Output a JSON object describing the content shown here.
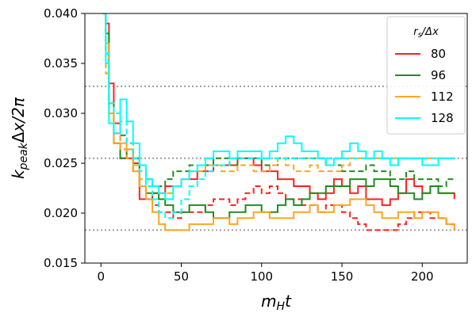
{
  "chart_data": {
    "type": "line",
    "title": "",
    "xlabel": "m_H t",
    "ylabel": "k_peak Δx / 2π",
    "xlim": [
      -10,
      228
    ],
    "ylim": [
      0.015,
      0.04
    ],
    "xticks": [
      0,
      50,
      100,
      150,
      200
    ],
    "yticks": [
      0.015,
      0.02,
      0.025,
      0.03,
      0.035,
      0.04
    ],
    "xtick_labels": [
      "0",
      "50",
      "100",
      "150",
      "200"
    ],
    "ytick_labels": [
      "0.015",
      "0.020",
      "0.025",
      "0.030",
      "0.035",
      "0.040"
    ],
    "hlines": [
      0.0183,
      0.0255,
      0.0327
    ],
    "hline_color": "#a0a0a0",
    "legend": {
      "title": "r_s/Δx",
      "position": "top-right"
    },
    "series": [
      {
        "name": "80",
        "color": "#ff2020",
        "style": "solid",
        "x": [
          1,
          3,
          5,
          8,
          12,
          16,
          20,
          24,
          28,
          32,
          36,
          40,
          45,
          50,
          55,
          60,
          65,
          70,
          75,
          80,
          85,
          90,
          95,
          100,
          105,
          110,
          115,
          120,
          125,
          130,
          135,
          140,
          145,
          150,
          155,
          160,
          165,
          170,
          175,
          180,
          185,
          190,
          195,
          200,
          205,
          210,
          215,
          220
        ],
        "y": [
          0.04,
          0.039,
          0.033,
          0.027,
          0.0255,
          0.0255,
          0.025,
          0.0214,
          0.0214,
          0.022,
          0.022,
          0.0227,
          0.0227,
          0.0234,
          0.0234,
          0.0242,
          0.0242,
          0.0248,
          0.0248,
          0.0248,
          0.0255,
          0.0255,
          0.0248,
          0.0242,
          0.0242,
          0.0234,
          0.0234,
          0.0227,
          0.0227,
          0.022,
          0.0214,
          0.022,
          0.0234,
          0.0227,
          0.022,
          0.0227,
          0.0214,
          0.0214,
          0.0208,
          0.0214,
          0.022,
          0.0234,
          0.0227,
          0.022,
          0.0227,
          0.022,
          0.022,
          0.0214
        ]
      },
      {
        "name": "80 (dashed)",
        "color": "#ff2020",
        "style": "dashed",
        "x": [
          1,
          3,
          5,
          8,
          12,
          16,
          20,
          24,
          28,
          32,
          36,
          40,
          45,
          50,
          55,
          60,
          65,
          70,
          75,
          80,
          85,
          90,
          95,
          100,
          105,
          110,
          115,
          120,
          125,
          130,
          135,
          140,
          145,
          150,
          155,
          160,
          165,
          170,
          175,
          180,
          185,
          190,
          195,
          200,
          205,
          210,
          215,
          220
        ],
        "y": [
          0.04,
          0.037,
          0.031,
          0.029,
          0.0264,
          0.0255,
          0.0242,
          0.0227,
          0.0214,
          0.0208,
          0.0201,
          0.0201,
          0.0195,
          0.0201,
          0.0201,
          0.0201,
          0.0208,
          0.0214,
          0.0214,
          0.0208,
          0.0214,
          0.022,
          0.0227,
          0.022,
          0.0227,
          0.022,
          0.0214,
          0.0214,
          0.0208,
          0.0208,
          0.0201,
          0.0208,
          0.0208,
          0.0201,
          0.0195,
          0.0189,
          0.0183,
          0.0183,
          0.0183,
          0.0183,
          0.0189,
          0.0195,
          0.0201,
          0.0201,
          0.0195,
          0.0195,
          0.0189,
          0.0183
        ]
      },
      {
        "name": "96",
        "color": "#228b22",
        "style": "solid",
        "x": [
          1,
          3,
          5,
          8,
          12,
          16,
          20,
          24,
          28,
          32,
          36,
          40,
          45,
          50,
          55,
          60,
          65,
          70,
          75,
          80,
          85,
          90,
          95,
          100,
          105,
          110,
          115,
          120,
          125,
          130,
          135,
          140,
          145,
          150,
          155,
          160,
          165,
          170,
          175,
          180,
          185,
          190,
          195,
          200,
          205,
          210,
          215,
          220
        ],
        "y": [
          0.04,
          0.038,
          0.031,
          0.027,
          0.0255,
          0.0264,
          0.0255,
          0.0227,
          0.022,
          0.022,
          0.0214,
          0.0208,
          0.0201,
          0.0201,
          0.0208,
          0.0208,
          0.0201,
          0.0195,
          0.0195,
          0.0201,
          0.0201,
          0.0208,
          0.0208,
          0.0201,
          0.0201,
          0.0208,
          0.0214,
          0.0208,
          0.0214,
          0.022,
          0.022,
          0.0227,
          0.0227,
          0.0227,
          0.0234,
          0.0234,
          0.0227,
          0.0234,
          0.0234,
          0.0227,
          0.022,
          0.022,
          0.0214,
          0.022,
          0.0227,
          0.022,
          0.022,
          0.022
        ]
      },
      {
        "name": "96 (dashed)",
        "color": "#228b22",
        "style": "dashed",
        "x": [
          1,
          3,
          5,
          8,
          12,
          16,
          20,
          24,
          28,
          32,
          36,
          40,
          45,
          50,
          55,
          60,
          65,
          70,
          75,
          80,
          85,
          90,
          95,
          100,
          105,
          110,
          115,
          120,
          125,
          130,
          135,
          140,
          145,
          150,
          155,
          160,
          165,
          170,
          175,
          180,
          185,
          190,
          195,
          200,
          205,
          210,
          215,
          220
        ],
        "y": [
          0.04,
          0.036,
          0.03,
          0.028,
          0.0278,
          0.027,
          0.0255,
          0.0242,
          0.0234,
          0.0227,
          0.0227,
          0.0234,
          0.0242,
          0.0242,
          0.0248,
          0.0248,
          0.0248,
          0.0255,
          0.0255,
          0.0248,
          0.0255,
          0.0255,
          0.0255,
          0.0248,
          0.0248,
          0.0255,
          0.0255,
          0.0255,
          0.0255,
          0.0255,
          0.0255,
          0.0248,
          0.0248,
          0.0242,
          0.0242,
          0.0242,
          0.0248,
          0.0242,
          0.0242,
          0.0234,
          0.0234,
          0.0242,
          0.0234,
          0.0234,
          0.0234,
          0.0227,
          0.0234,
          0.0234
        ]
      },
      {
        "name": "112",
        "color": "#ffa520",
        "style": "solid",
        "x": [
          1,
          3,
          5,
          8,
          12,
          16,
          20,
          24,
          28,
          32,
          36,
          40,
          45,
          50,
          55,
          60,
          65,
          70,
          75,
          80,
          85,
          90,
          95,
          100,
          105,
          110,
          115,
          120,
          125,
          130,
          135,
          140,
          145,
          150,
          155,
          160,
          165,
          170,
          175,
          180,
          185,
          190,
          195,
          200,
          205,
          210,
          215,
          220
        ],
        "y": [
          0.04,
          0.037,
          0.03,
          0.027,
          0.027,
          0.0264,
          0.0242,
          0.0227,
          0.0214,
          0.0201,
          0.0189,
          0.0183,
          0.0183,
          0.0183,
          0.0189,
          0.0189,
          0.0189,
          0.0195,
          0.0195,
          0.0189,
          0.0195,
          0.0195,
          0.0201,
          0.0201,
          0.0195,
          0.0195,
          0.0195,
          0.0201,
          0.0201,
          0.0208,
          0.0201,
          0.0201,
          0.0208,
          0.0208,
          0.0214,
          0.0214,
          0.0208,
          0.0201,
          0.0195,
          0.0195,
          0.0201,
          0.0201,
          0.0195,
          0.0201,
          0.0201,
          0.0195,
          0.0189,
          0.0183
        ]
      },
      {
        "name": "112 (dashed)",
        "color": "#ffa520",
        "style": "dashed",
        "x": [
          1,
          3,
          5,
          8,
          12,
          16,
          20,
          24,
          28,
          32,
          36,
          40,
          45,
          50,
          55,
          60,
          65,
          70,
          75,
          80,
          85,
          90,
          95,
          100,
          105,
          110,
          115,
          120,
          125,
          130,
          135,
          140,
          145,
          150,
          155,
          160,
          165,
          170,
          175,
          180,
          185,
          190,
          195,
          200,
          205,
          210,
          215,
          220
        ],
        "y": [
          0.04,
          0.034,
          0.029,
          0.028,
          0.0264,
          0.0255,
          0.0248,
          0.0234,
          0.0227,
          0.0227,
          0.022,
          0.022,
          0.0227,
          0.0234,
          0.0242,
          0.0242,
          0.0248,
          0.0248,
          0.0242,
          0.0242,
          0.0248,
          0.0248,
          0.0242,
          0.0242,
          0.0248,
          0.0255,
          0.0248,
          0.0242,
          0.0242,
          0.0248,
          0.0242,
          0.0242,
          0.0242,
          0.0248,
          0.0255,
          0.0255,
          0.0255,
          0.0255,
          0.0255,
          0.0255,
          0.0255,
          0.0255,
          0.0255,
          0.0255,
          0.0255,
          0.0255,
          0.0255,
          0.0255
        ]
      },
      {
        "name": "128",
        "color": "#00ffff",
        "style": "solid",
        "x": [
          1,
          3,
          5,
          8,
          12,
          16,
          20,
          24,
          28,
          32,
          36,
          40,
          45,
          50,
          55,
          60,
          65,
          70,
          75,
          80,
          85,
          90,
          95,
          100,
          105,
          110,
          115,
          120,
          125,
          130,
          135,
          140,
          145,
          150,
          155,
          160,
          165,
          170,
          175,
          180,
          185,
          190,
          195,
          200,
          205,
          210,
          215,
          220
        ],
        "y": [
          0.04,
          0.035,
          0.029,
          0.028,
          0.0314,
          0.0292,
          0.027,
          0.0248,
          0.0234,
          0.0227,
          0.022,
          0.0214,
          0.0227,
          0.0234,
          0.0242,
          0.0248,
          0.0255,
          0.0262,
          0.0262,
          0.0255,
          0.0262,
          0.0262,
          0.0262,
          0.0255,
          0.0262,
          0.027,
          0.0277,
          0.027,
          0.0262,
          0.0262,
          0.0255,
          0.0248,
          0.0255,
          0.0262,
          0.027,
          0.0262,
          0.0255,
          0.0262,
          0.0255,
          0.0248,
          0.0255,
          0.0255,
          0.0255,
          0.0248,
          0.0248,
          0.0255,
          0.0255,
          0.0255
        ]
      },
      {
        "name": "128 (dashed)",
        "color": "#00ffff",
        "style": "dashed",
        "x": [
          1,
          3,
          5,
          8,
          12,
          16,
          20,
          24,
          28,
          32,
          36,
          40,
          45,
          50,
          55,
          60,
          65,
          70,
          75,
          80,
          85,
          90,
          95,
          100,
          105,
          110,
          115,
          120,
          125,
          130,
          135,
          140,
          145,
          150,
          155,
          160,
          165,
          170,
          175,
          180,
          185,
          190,
          195,
          200,
          205,
          210,
          215,
          220
        ],
        "y": [
          0.04,
          0.036,
          0.031,
          0.03,
          0.0292,
          0.027,
          0.0255,
          0.0242,
          0.0227,
          0.0214,
          0.0201,
          0.0195,
          0.0201,
          0.0214,
          0.0227,
          0.0234,
          0.0242,
          0.0248,
          0.0248,
          0.0255,
          0.0255,
          0.0255,
          0.0255,
          0.0255,
          0.0255,
          0.0255,
          0.0255,
          0.0255,
          0.0255,
          0.0255,
          0.0255,
          0.0255,
          0.0255,
          0.0255,
          0.0255,
          0.0255,
          0.0255,
          0.0255,
          0.0255,
          0.0255,
          0.0255,
          0.0255,
          0.0255,
          0.0255,
          0.0255,
          0.0255,
          0.0255,
          0.0255
        ]
      }
    ],
    "legend_entries": [
      {
        "label": "80",
        "color": "#ff2020"
      },
      {
        "label": "96",
        "color": "#228b22"
      },
      {
        "label": "112",
        "color": "#ffa520"
      },
      {
        "label": "128",
        "color": "#00ffff"
      }
    ]
  }
}
